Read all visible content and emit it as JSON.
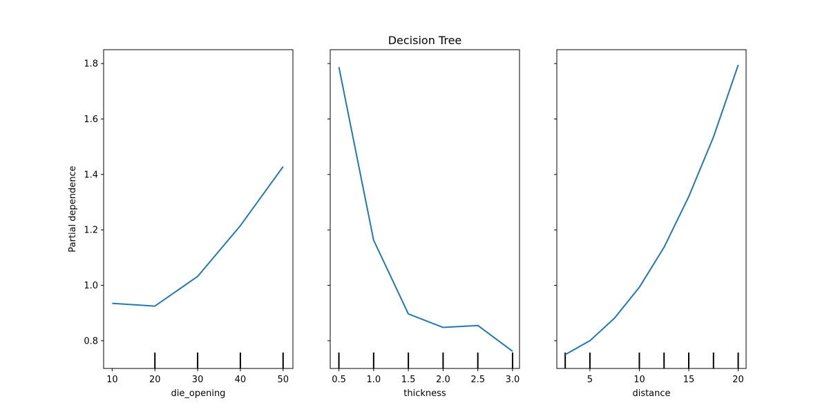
{
  "title": "Decision Tree",
  "ylabel": "Partial dependence",
  "line_color": "#1f77b4",
  "chart_data": [
    {
      "type": "line",
      "xlabel": "die_opening",
      "xlim": [
        8,
        52.3
      ],
      "ylim": [
        0.7,
        1.85
      ],
      "xticks": [
        10,
        20,
        30,
        40,
        50
      ],
      "xtick_labels": [
        "10",
        "20",
        "30",
        "40",
        "50"
      ],
      "yticks": [
        0.8,
        1.0,
        1.2,
        1.4,
        1.6,
        1.8
      ],
      "ytick_labels": [
        "0.8",
        "1.0",
        "1.2",
        "1.4",
        "1.6",
        "1.8"
      ],
      "show_ytick_labels": true,
      "x": [
        10,
        20,
        30,
        40,
        50
      ],
      "y": [
        0.935,
        0.925,
        1.032,
        1.215,
        1.428
      ],
      "deciles": [
        20,
        30,
        40,
        50
      ]
    },
    {
      "type": "line",
      "xlabel": "thickness",
      "xlim": [
        0.375,
        3.1
      ],
      "ylim": [
        0.7,
        1.85
      ],
      "xticks": [
        0.5,
        1.0,
        1.5,
        2.0,
        2.5,
        3.0
      ],
      "xtick_labels": [
        "0.5",
        "1.0",
        "1.5",
        "2.0",
        "2.5",
        "3.0"
      ],
      "yticks": [
        0.8,
        1.0,
        1.2,
        1.4,
        1.6,
        1.8
      ],
      "ytick_labels": [
        "0.8",
        "1.0",
        "1.2",
        "1.4",
        "1.6",
        "1.8"
      ],
      "show_ytick_labels": false,
      "x": [
        0.5,
        1.0,
        1.5,
        2.0,
        2.5,
        3.0
      ],
      "y": [
        1.787,
        1.163,
        0.897,
        0.848,
        0.855,
        0.762
      ],
      "deciles": [
        0.5,
        1.0,
        1.5,
        2.0,
        2.5,
        3.0
      ]
    },
    {
      "type": "line",
      "xlabel": "distance",
      "xlim": [
        1.65,
        20.8
      ],
      "ylim": [
        0.7,
        1.85
      ],
      "xticks": [
        5,
        10,
        15,
        20
      ],
      "xtick_labels": [
        "5",
        "10",
        "15",
        "20"
      ],
      "yticks": [
        0.8,
        1.0,
        1.2,
        1.4,
        1.6,
        1.8
      ],
      "ytick_labels": [
        "0.8",
        "1.0",
        "1.2",
        "1.4",
        "1.6",
        "1.8"
      ],
      "show_ytick_labels": false,
      "x": [
        2.5,
        5,
        7.5,
        10,
        12.5,
        15,
        17.5,
        20
      ],
      "y": [
        0.75,
        0.8,
        0.882,
        0.993,
        1.137,
        1.32,
        1.535,
        1.795
      ],
      "deciles": [
        2.5,
        5,
        10,
        12.5,
        15,
        17.5,
        20
      ]
    }
  ]
}
